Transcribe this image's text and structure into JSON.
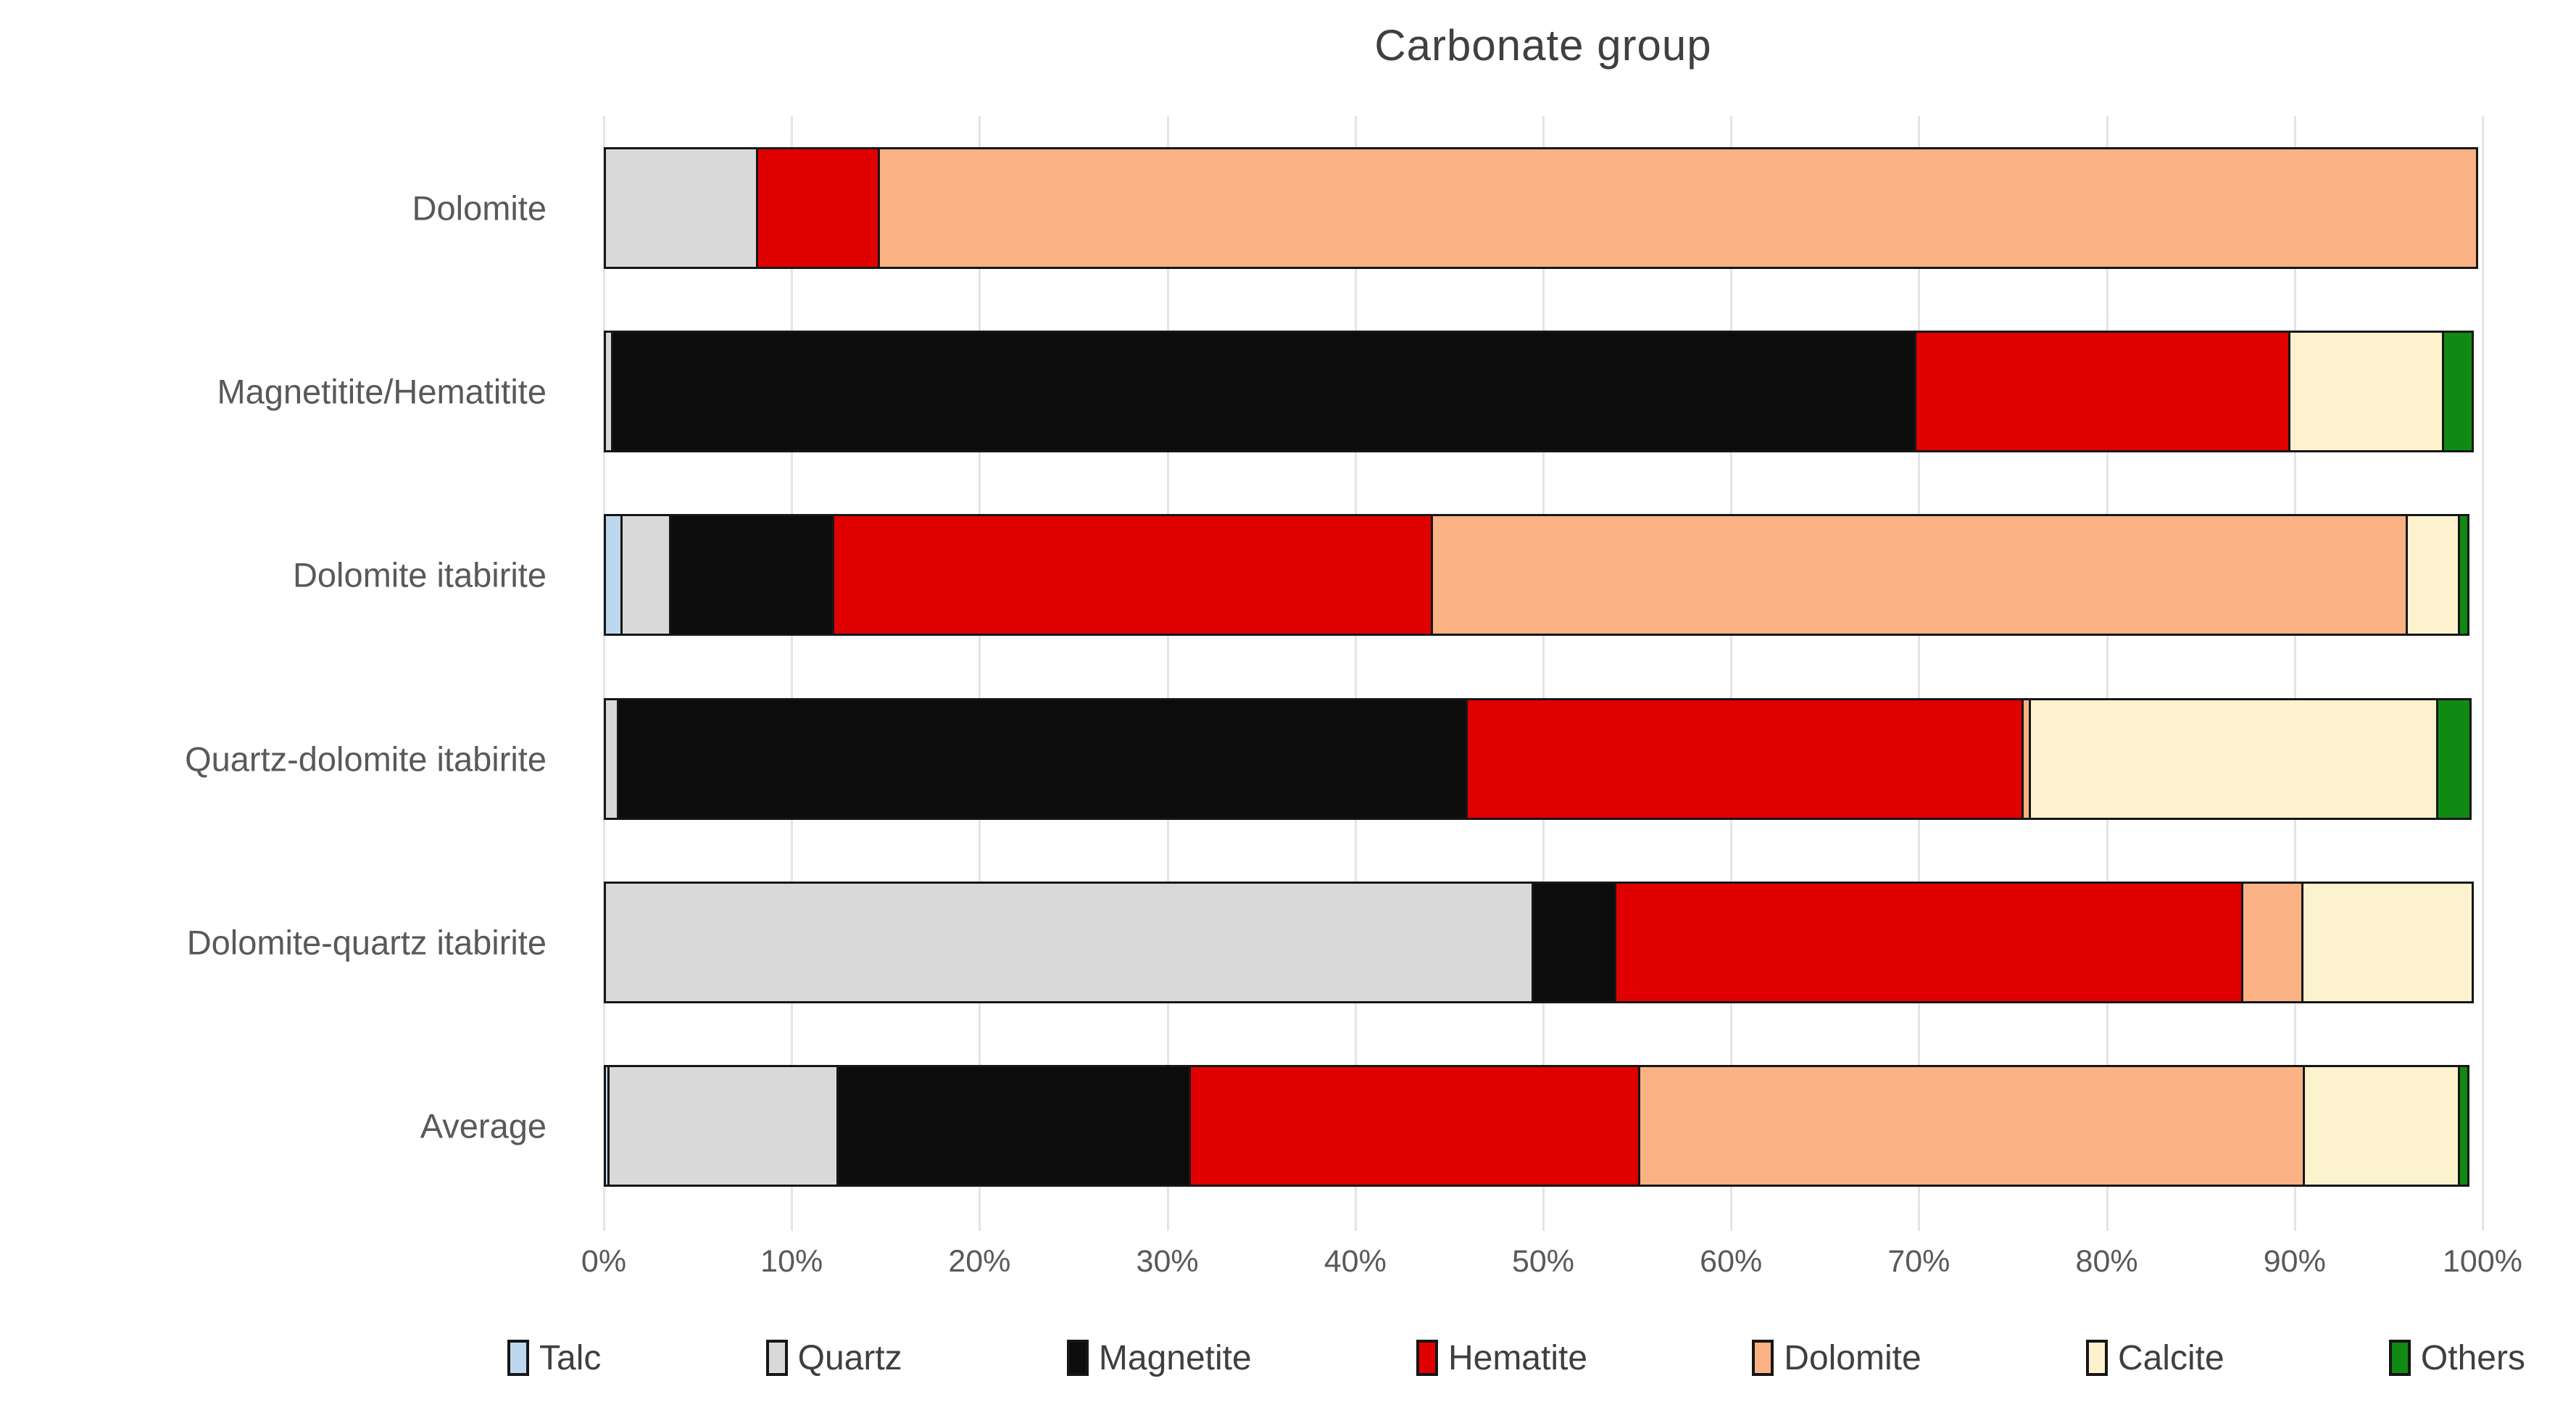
{
  "chart_data": {
    "type": "bar",
    "orientation": "horizontal",
    "stacked": true,
    "title": "Carbonate group",
    "xlabel": "",
    "ylabel": "",
    "xlim": [
      0,
      100
    ],
    "x_tick_labels": [
      "0%",
      "10%",
      "20%",
      "30%",
      "40%",
      "50%",
      "60%",
      "70%",
      "80%",
      "90%",
      "100%"
    ],
    "x_tick_values": [
      0,
      10,
      20,
      30,
      40,
      50,
      60,
      70,
      80,
      90,
      100
    ],
    "grid": "vertical",
    "legend_position": "bottom",
    "categories": [
      "Dolomite",
      "Magnetitite/Hematitite",
      "Dolomite itabirite",
      "Quartz-dolomite itabirite",
      "Dolomite-quartz itabirite",
      "Average"
    ],
    "series": [
      {
        "name": "Talc",
        "color": "#bdd7ee",
        "values": [
          0,
          0,
          1.0,
          0,
          0,
          0.3
        ]
      },
      {
        "name": "Quartz",
        "color": "#d9d9d9",
        "values": [
          8.2,
          0.5,
          2.7,
          0.8,
          49.5,
          12.3
        ]
      },
      {
        "name": "Magnetite",
        "color": "#0c0c0c",
        "values": [
          0,
          69.5,
          8.8,
          45.3,
          4.5,
          18.9
        ]
      },
      {
        "name": "Hematite",
        "color": "#e00000",
        "values": [
          6.6,
          20.0,
          32.0,
          29.7,
          33.5,
          24.0
        ]
      },
      {
        "name": "Dolomite",
        "color": "#fab183",
        "values": [
          85.2,
          0,
          52.0,
          0.5,
          3.3,
          35.5
        ]
      },
      {
        "name": "Calcite",
        "color": "#fcf2ce",
        "values": [
          0,
          8.3,
          2.9,
          21.8,
          9.2,
          8.4
        ]
      },
      {
        "name": "Others",
        "color": "#108a12",
        "values": [
          0,
          1.7,
          0.6,
          1.9,
          0,
          0.6
        ]
      }
    ],
    "colors": {
      "grid": "#e4e4e4",
      "segment_border": "#161616",
      "title_text": "#404040",
      "axis_text": "#595959",
      "legend_text": "#3f3f3f"
    }
  }
}
